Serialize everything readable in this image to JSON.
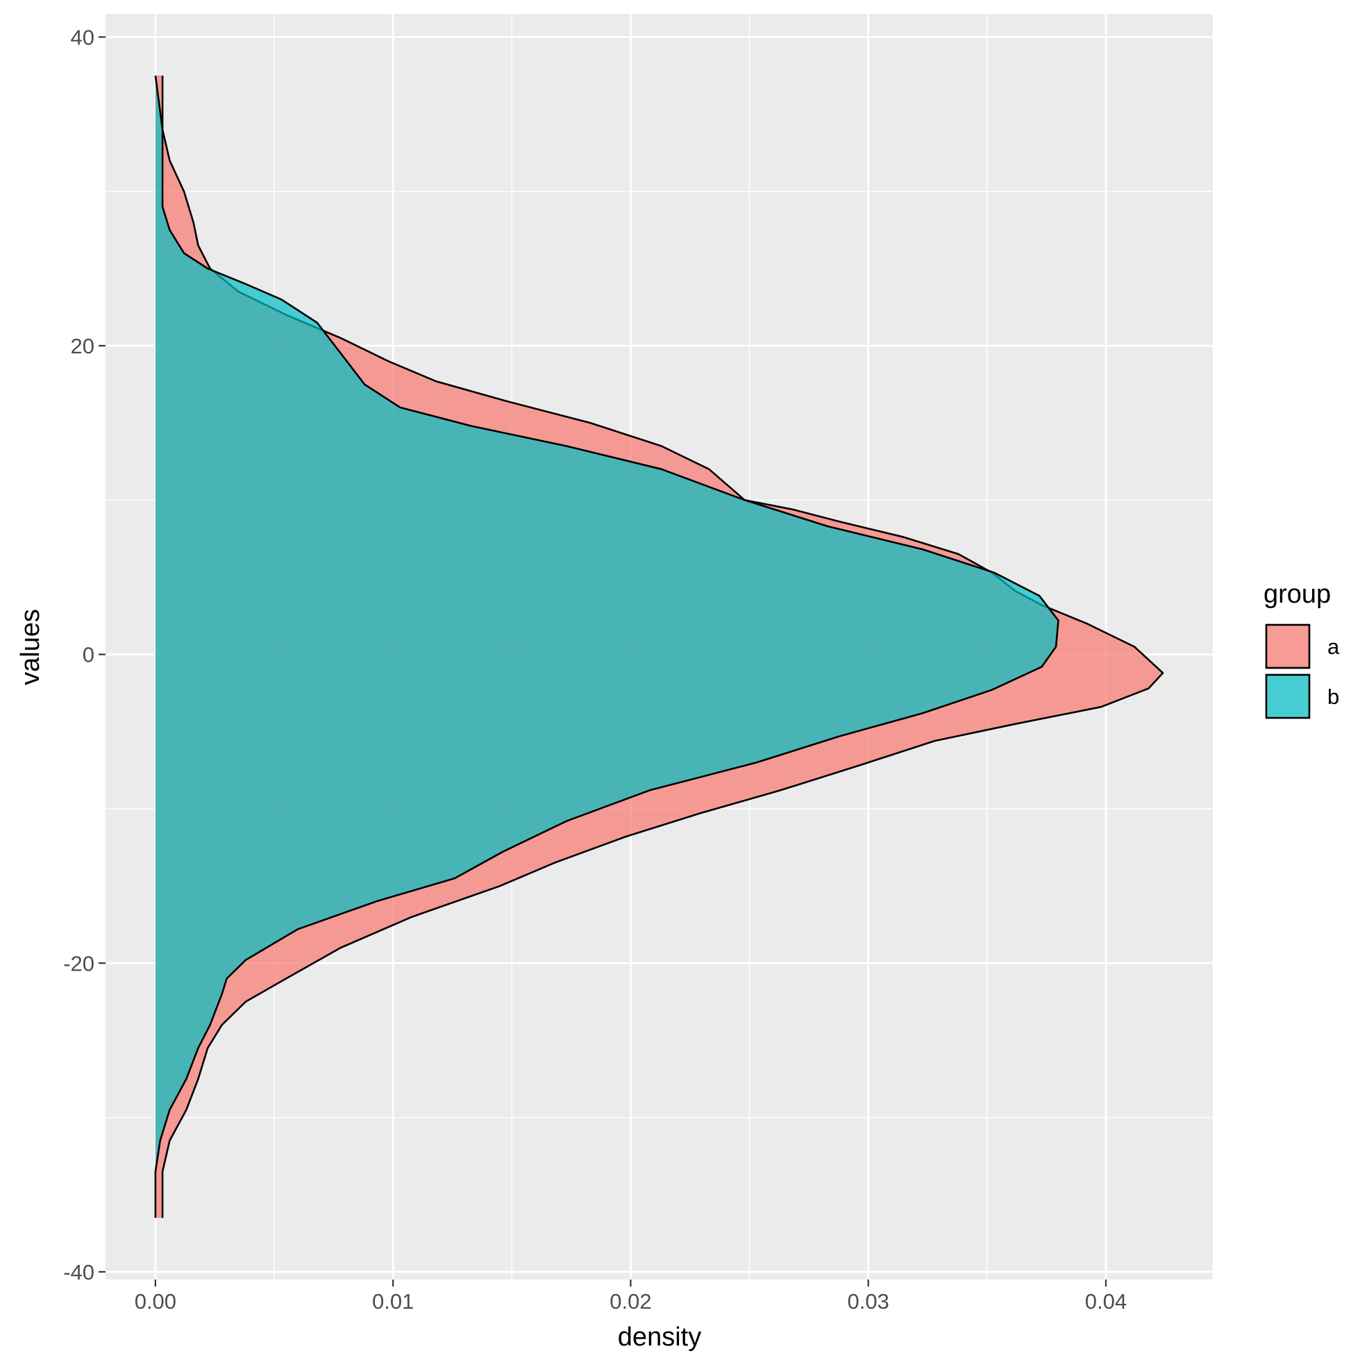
{
  "chart_data": {
    "type": "area",
    "orientation": "horizontal",
    "xlabel": "density",
    "ylabel": "values",
    "xlim": [
      -0.0021,
      0.0445
    ],
    "ylim": [
      -40.5,
      41.5
    ],
    "x_ticks": [
      0.0,
      0.01,
      0.02,
      0.03,
      0.04
    ],
    "x_tick_labels": [
      "0.00",
      "0.01",
      "0.02",
      "0.03",
      "0.04"
    ],
    "y_ticks": [
      -40,
      -20,
      0,
      20,
      40
    ],
    "y_tick_labels": [
      "-40",
      "-20",
      "0",
      "20",
      "40"
    ],
    "grid": true,
    "legend": {
      "title": "group",
      "position": "right"
    },
    "series": [
      {
        "name": "a",
        "color": "#F8766D",
        "points": [
          [
            0.0003,
            37.5
          ],
          [
            0.0003,
            34
          ],
          [
            0.0006,
            32
          ],
          [
            0.0012,
            30
          ],
          [
            0.0016,
            28
          ],
          [
            0.0018,
            26.5
          ],
          [
            0.0023,
            25
          ],
          [
            0.0035,
            23.5
          ],
          [
            0.0055,
            22
          ],
          [
            0.0078,
            20.5
          ],
          [
            0.0098,
            19
          ],
          [
            0.0118,
            17.7
          ],
          [
            0.0148,
            16.4
          ],
          [
            0.0183,
            15
          ],
          [
            0.0213,
            13.5
          ],
          [
            0.0233,
            12
          ],
          [
            0.0248,
            10
          ],
          [
            0.0268,
            9.4
          ],
          [
            0.0288,
            8.6
          ],
          [
            0.0315,
            7.6
          ],
          [
            0.0338,
            6.5
          ],
          [
            0.0352,
            5.3
          ],
          [
            0.0362,
            4.1
          ],
          [
            0.0373,
            3.2
          ],
          [
            0.0392,
            2
          ],
          [
            0.0412,
            0.5
          ],
          [
            0.0424,
            -1.2
          ],
          [
            0.0418,
            -2.2
          ],
          [
            0.0398,
            -3.4
          ],
          [
            0.0362,
            -4.5
          ],
          [
            0.0328,
            -5.6
          ],
          [
            0.0298,
            -7.1
          ],
          [
            0.0263,
            -8.8
          ],
          [
            0.0229,
            -10.3
          ],
          [
            0.0198,
            -11.8
          ],
          [
            0.0168,
            -13.5
          ],
          [
            0.0145,
            -15
          ],
          [
            0.0108,
            -17
          ],
          [
            0.0078,
            -19
          ],
          [
            0.0055,
            -21
          ],
          [
            0.0038,
            -22.5
          ],
          [
            0.0028,
            -24
          ],
          [
            0.0022,
            -25.5
          ],
          [
            0.0018,
            -27.5
          ],
          [
            0.0013,
            -29.5
          ],
          [
            0.0006,
            -31.5
          ],
          [
            0.0003,
            -33.5
          ],
          [
            0.0003,
            -36.5
          ]
        ]
      },
      {
        "name": "b",
        "color": "#00BFC4",
        "points": [
          [
            0.0,
            37.5
          ],
          [
            0.0003,
            34
          ],
          [
            0.0003,
            31
          ],
          [
            0.0003,
            29
          ],
          [
            0.0006,
            27.5
          ],
          [
            0.0012,
            26
          ],
          [
            0.0022,
            25
          ],
          [
            0.0038,
            24
          ],
          [
            0.0053,
            23
          ],
          [
            0.0068,
            21.5
          ],
          [
            0.0078,
            19.5
          ],
          [
            0.0088,
            17.5
          ],
          [
            0.0103,
            16
          ],
          [
            0.0133,
            14.8
          ],
          [
            0.0173,
            13.5
          ],
          [
            0.0213,
            12
          ],
          [
            0.0248,
            10
          ],
          [
            0.0283,
            8.3
          ],
          [
            0.0323,
            6.8
          ],
          [
            0.0353,
            5.3
          ],
          [
            0.0372,
            3.8
          ],
          [
            0.038,
            2.2
          ],
          [
            0.0379,
            0.5
          ],
          [
            0.0373,
            -0.8
          ],
          [
            0.0352,
            -2.3
          ],
          [
            0.0323,
            -3.8
          ],
          [
            0.0288,
            -5.3
          ],
          [
            0.0253,
            -7
          ],
          [
            0.0208,
            -8.8
          ],
          [
            0.0173,
            -10.8
          ],
          [
            0.0146,
            -12.8
          ],
          [
            0.0126,
            -14.5
          ],
          [
            0.0093,
            -16
          ],
          [
            0.006,
            -17.8
          ],
          [
            0.0038,
            -19.8
          ],
          [
            0.003,
            -21
          ],
          [
            0.0028,
            -22
          ],
          [
            0.0023,
            -24
          ],
          [
            0.0018,
            -25.5
          ],
          [
            0.0013,
            -27.5
          ],
          [
            0.0006,
            -29.5
          ],
          [
            0.0002,
            -31.5
          ],
          [
            0.0,
            -33.5
          ],
          [
            0.0,
            -36.5
          ]
        ]
      }
    ]
  }
}
